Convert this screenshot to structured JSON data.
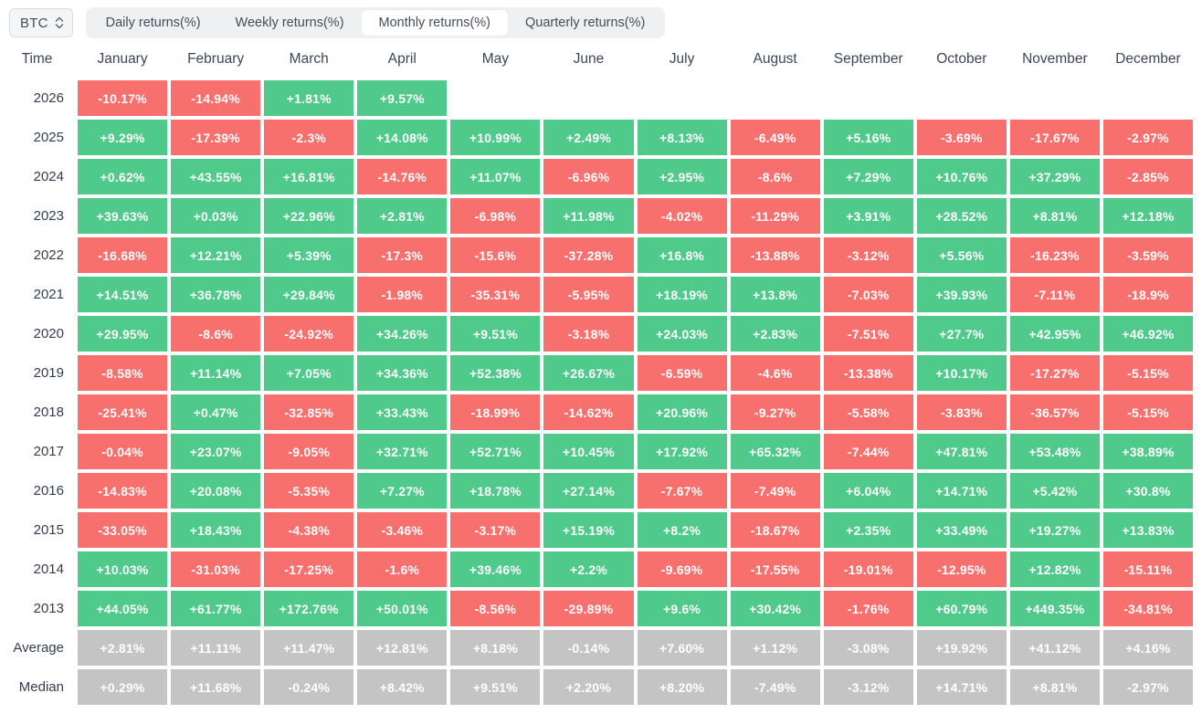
{
  "controls": {
    "symbol_select": {
      "value": "BTC"
    },
    "tabs": [
      {
        "label": "Daily returns(%)",
        "active": false
      },
      {
        "label": "Weekly returns(%)",
        "active": false
      },
      {
        "label": "Monthly returns(%)",
        "active": true
      },
      {
        "label": "Quarterly returns(%)",
        "active": false
      }
    ]
  },
  "colors": {
    "positive": "#4fca8b",
    "negative": "#f7706e",
    "summary": "#c4c4c4",
    "header_text": "#3c4657",
    "label_text": "#333d4f",
    "tabbar_bg": "#eef0f2",
    "active_tab_bg": "#ffffff",
    "tab_text": "#444e5b",
    "select_bg": "#f4f5f7",
    "select_border": "#d8dce1"
  },
  "chart_data": {
    "type": "heatmap",
    "title": "Monthly returns(%)",
    "unit": "%",
    "columns": [
      "January",
      "February",
      "March",
      "April",
      "May",
      "June",
      "July",
      "August",
      "September",
      "October",
      "November",
      "December"
    ],
    "rows": [
      "2026",
      "2025",
      "2024",
      "2023",
      "2022",
      "2021",
      "2020",
      "2019",
      "2018",
      "2017",
      "2016",
      "2015",
      "2014",
      "2013",
      "Average",
      "Median"
    ]
  },
  "table": {
    "time_header": "Time",
    "months": [
      "January",
      "February",
      "March",
      "April",
      "May",
      "June",
      "July",
      "August",
      "September",
      "October",
      "November",
      "December"
    ],
    "rows": [
      {
        "label": "2026",
        "type": "year",
        "values": [
          "-10.17%",
          "-14.94%",
          "+1.81%",
          "+9.57%",
          "",
          "",
          "",
          "",
          "",
          "",
          "",
          ""
        ]
      },
      {
        "label": "2025",
        "type": "year",
        "values": [
          "+9.29%",
          "-17.39%",
          "-2.3%",
          "+14.08%",
          "+10.99%",
          "+2.49%",
          "+8.13%",
          "-6.49%",
          "+5.16%",
          "-3.69%",
          "-17.67%",
          "-2.97%"
        ]
      },
      {
        "label": "2024",
        "type": "year",
        "values": [
          "+0.62%",
          "+43.55%",
          "+16.81%",
          "-14.76%",
          "+11.07%",
          "-6.96%",
          "+2.95%",
          "-8.6%",
          "+7.29%",
          "+10.76%",
          "+37.29%",
          "-2.85%"
        ]
      },
      {
        "label": "2023",
        "type": "year",
        "values": [
          "+39.63%",
          "+0.03%",
          "+22.96%",
          "+2.81%",
          "-6.98%",
          "+11.98%",
          "-4.02%",
          "-11.29%",
          "+3.91%",
          "+28.52%",
          "+8.81%",
          "+12.18%"
        ]
      },
      {
        "label": "2022",
        "type": "year",
        "values": [
          "-16.68%",
          "+12.21%",
          "+5.39%",
          "-17.3%",
          "-15.6%",
          "-37.28%",
          "+16.8%",
          "-13.88%",
          "-3.12%",
          "+5.56%",
          "-16.23%",
          "-3.59%"
        ]
      },
      {
        "label": "2021",
        "type": "year",
        "values": [
          "+14.51%",
          "+36.78%",
          "+29.84%",
          "-1.98%",
          "-35.31%",
          "-5.95%",
          "+18.19%",
          "+13.8%",
          "-7.03%",
          "+39.93%",
          "-7.11%",
          "-18.9%"
        ]
      },
      {
        "label": "2020",
        "type": "year",
        "values": [
          "+29.95%",
          "-8.6%",
          "-24.92%",
          "+34.26%",
          "+9.51%",
          "-3.18%",
          "+24.03%",
          "+2.83%",
          "-7.51%",
          "+27.7%",
          "+42.95%",
          "+46.92%"
        ]
      },
      {
        "label": "2019",
        "type": "year",
        "values": [
          "-8.58%",
          "+11.14%",
          "+7.05%",
          "+34.36%",
          "+52.38%",
          "+26.67%",
          "-6.59%",
          "-4.6%",
          "-13.38%",
          "+10.17%",
          "-17.27%",
          "-5.15%"
        ]
      },
      {
        "label": "2018",
        "type": "year",
        "values": [
          "-25.41%",
          "+0.47%",
          "-32.85%",
          "+33.43%",
          "-18.99%",
          "-14.62%",
          "+20.96%",
          "-9.27%",
          "-5.58%",
          "-3.83%",
          "-36.57%",
          "-5.15%"
        ]
      },
      {
        "label": "2017",
        "type": "year",
        "values": [
          "-0.04%",
          "+23.07%",
          "-9.05%",
          "+32.71%",
          "+52.71%",
          "+10.45%",
          "+17.92%",
          "+65.32%",
          "-7.44%",
          "+47.81%",
          "+53.48%",
          "+38.89%"
        ]
      },
      {
        "label": "2016",
        "type": "year",
        "values": [
          "-14.83%",
          "+20.08%",
          "-5.35%",
          "+7.27%",
          "+18.78%",
          "+27.14%",
          "-7.67%",
          "-7.49%",
          "+6.04%",
          "+14.71%",
          "+5.42%",
          "+30.8%"
        ]
      },
      {
        "label": "2015",
        "type": "year",
        "values": [
          "-33.05%",
          "+18.43%",
          "-4.38%",
          "-3.46%",
          "-3.17%",
          "+15.19%",
          "+8.2%",
          "-18.67%",
          "+2.35%",
          "+33.49%",
          "+19.27%",
          "+13.83%"
        ]
      },
      {
        "label": "2014",
        "type": "year",
        "values": [
          "+10.03%",
          "-31.03%",
          "-17.25%",
          "-1.6%",
          "+39.46%",
          "+2.2%",
          "-9.69%",
          "-17.55%",
          "-19.01%",
          "-12.95%",
          "+12.82%",
          "-15.11%"
        ]
      },
      {
        "label": "2013",
        "type": "year",
        "values": [
          "+44.05%",
          "+61.77%",
          "+172.76%",
          "+50.01%",
          "-8.56%",
          "-29.89%",
          "+9.6%",
          "+30.42%",
          "-1.76%",
          "+60.79%",
          "+449.35%",
          "-34.81%"
        ]
      },
      {
        "label": "Average",
        "type": "summary",
        "values": [
          "+2.81%",
          "+11.11%",
          "+11.47%",
          "+12.81%",
          "+8.18%",
          "-0.14%",
          "+7.60%",
          "+1.12%",
          "-3.08%",
          "+19.92%",
          "+41.12%",
          "+4.16%"
        ]
      },
      {
        "label": "Median",
        "type": "summary",
        "values": [
          "+0.29%",
          "+11.68%",
          "-0.24%",
          "+8.42%",
          "+9.51%",
          "+2.20%",
          "+8.20%",
          "-7.49%",
          "-3.12%",
          "+14.71%",
          "+8.81%",
          "-2.97%"
        ]
      }
    ]
  }
}
